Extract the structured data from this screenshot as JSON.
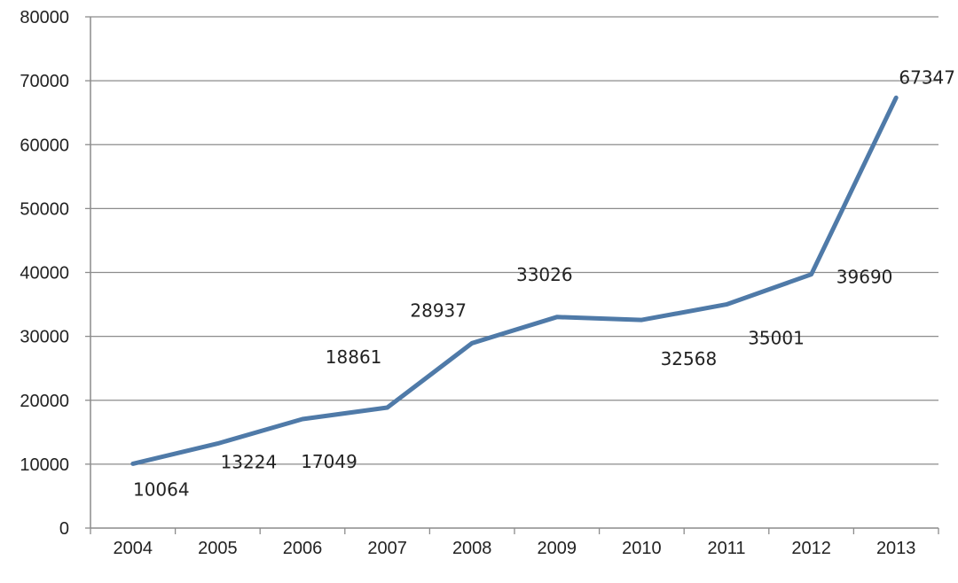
{
  "chart_data": {
    "type": "line",
    "title": "",
    "xlabel": "",
    "ylabel": "",
    "categories": [
      "2004",
      "2005",
      "2006",
      "2007",
      "2008",
      "2009",
      "2010",
      "2011",
      "2012",
      "2013"
    ],
    "series": [
      {
        "values": [
          10064,
          13224,
          17049,
          18861,
          28937,
          33026,
          32568,
          35001,
          39690,
          67347
        ],
        "labels": [
          "10064",
          "13224",
          "17049",
          "18861",
          "28937",
          "33026",
          "32568",
          "35001",
          "39690",
          "67347"
        ],
        "color": "#4f7aa8"
      }
    ],
    "y_ticks": [
      "0",
      "10000",
      "20000",
      "30000",
      "40000",
      "50000",
      "60000",
      "70000",
      "80000"
    ],
    "ylim": [
      0,
      80000
    ],
    "grid": true,
    "legend": "none",
    "gridline_color": "#8c8c8c",
    "axis_color": "#8c8c8c"
  }
}
